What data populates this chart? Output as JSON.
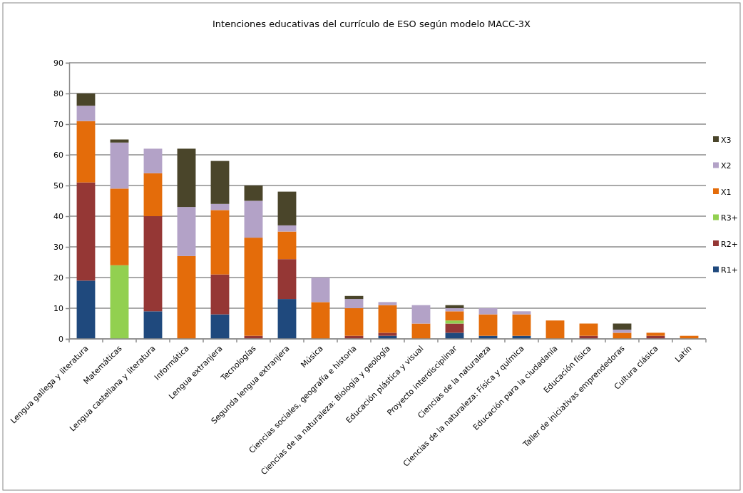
{
  "chart_data": {
    "type": "bar",
    "title": "Intenciones educativas del currículo de ESO según modelo MACC-3X",
    "stacked": true,
    "grid": "y",
    "legend": "right",
    "categories": [
      "Lengua gallega y literatura",
      "Matemáticas",
      "Lengua castellana y literatura",
      "Informática",
      "Lengua extranjera",
      "Tecnologías",
      "Segunda lengua extranjera",
      "Música",
      "Ciencias sociales, geografía e historia",
      "Ciencias de la naturaleza: Biología y geología",
      "Educación plástica y visual",
      "Proyecto interdisciplinar",
      "Ciencias de la naturaleza",
      "Ciencias de la naturaleza: Física y química",
      "Educación para la ciudadanía",
      "Educación física",
      "Taller de iniciativas emprendedoras",
      "Cultura clásica",
      "Latín"
    ],
    "ylim": [
      0,
      90
    ],
    "yticks": [
      0,
      10,
      20,
      30,
      40,
      50,
      60,
      70,
      80,
      90
    ],
    "series": [
      {
        "name": "R1+",
        "color": "#1f497d",
        "values": [
          19,
          0,
          9,
          0,
          8,
          0,
          13,
          0,
          0,
          1,
          0,
          2,
          1,
          1,
          0,
          0,
          0,
          0,
          0
        ]
      },
      {
        "name": "R2+",
        "color": "#953735",
        "values": [
          32,
          0,
          31,
          0,
          13,
          1,
          13,
          0,
          1,
          1,
          0,
          3,
          0,
          0,
          0,
          1,
          0,
          1,
          0
        ]
      },
      {
        "name": "R3+",
        "color": "#92d050",
        "values": [
          0,
          24,
          0,
          0,
          0,
          0,
          0,
          0,
          0,
          0,
          0,
          1,
          0,
          0,
          0,
          0,
          0,
          0,
          0
        ]
      },
      {
        "name": "X1",
        "color": "#e46c0a",
        "values": [
          20,
          25,
          14,
          27,
          21,
          32,
          9,
          12,
          9,
          9,
          5,
          3,
          7,
          7,
          6,
          4,
          2,
          1,
          1
        ]
      },
      {
        "name": "X2",
        "color": "#b3a2c7",
        "values": [
          5,
          15,
          8,
          16,
          2,
          12,
          2,
          8,
          3,
          1,
          6,
          1,
          2,
          1,
          0,
          0,
          1,
          0,
          0
        ]
      },
      {
        "name": "X3",
        "color": "#4a452a",
        "values": [
          4,
          1,
          0,
          19,
          14,
          5,
          11,
          0,
          1,
          0,
          0,
          1,
          0,
          0,
          0,
          0,
          2,
          0,
          0
        ]
      }
    ]
  }
}
